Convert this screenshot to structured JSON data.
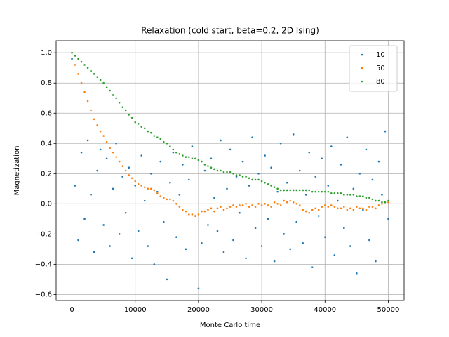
{
  "chart_data": {
    "type": "scatter",
    "title": "Relaxation (cold start, beta=0.2, 2D Ising)",
    "xlabel": "Monte Carlo time",
    "ylabel": "Magnetization",
    "x": [
      0,
      500,
      1000,
      1500,
      2000,
      2500,
      3000,
      3500,
      4000,
      4500,
      5000,
      5500,
      6000,
      6500,
      7000,
      7500,
      8000,
      8500,
      9000,
      9500,
      10000,
      10500,
      11000,
      11500,
      12000,
      12500,
      13000,
      13500,
      14000,
      14500,
      15000,
      15500,
      16000,
      16500,
      17000,
      17500,
      18000,
      18500,
      19000,
      19500,
      20000,
      20500,
      21000,
      21500,
      22000,
      22500,
      23000,
      23500,
      24000,
      24500,
      25000,
      25500,
      26000,
      26500,
      27000,
      27500,
      28000,
      28500,
      29000,
      29500,
      30000,
      30500,
      31000,
      31500,
      32000,
      32500,
      33000,
      33500,
      34000,
      34500,
      35000,
      35500,
      36000,
      36500,
      37000,
      37500,
      38000,
      38500,
      39000,
      39500,
      40000,
      40500,
      41000,
      41500,
      42000,
      42500,
      43000,
      43500,
      44000,
      44500,
      45000,
      45500,
      46000,
      46500,
      47000,
      47500,
      48000,
      48500,
      49000,
      49500,
      50000
    ],
    "series": [
      {
        "name": "10",
        "color": "#1f77b4",
        "values": [
          0.96,
          0.12,
          -0.24,
          0.34,
          -0.1,
          0.42,
          0.06,
          -0.32,
          0.22,
          0.36,
          -0.14,
          0.3,
          -0.28,
          0.1,
          0.4,
          -0.2,
          0.18,
          -0.06,
          0.24,
          -0.36,
          0.12,
          -0.18,
          0.32,
          0.02,
          -0.28,
          0.2,
          -0.4,
          0.08,
          0.28,
          -0.12,
          -0.5,
          0.14,
          0.34,
          -0.22,
          0.06,
          0.26,
          -0.3,
          0.16,
          0.38,
          -0.08,
          -0.56,
          -0.26,
          0.22,
          -0.14,
          0.3,
          0.04,
          -0.18,
          0.42,
          -0.32,
          0.1,
          0.36,
          -0.24,
          0.18,
          -0.06,
          0.28,
          -0.36,
          0.12,
          0.44,
          -0.16,
          0.2,
          -0.28,
          0.32,
          -0.1,
          0.24,
          -0.38,
          0.08,
          0.4,
          -0.2,
          0.14,
          -0.3,
          0.46,
          -0.12,
          0.22,
          -0.26,
          0.06,
          0.34,
          -0.42,
          0.18,
          -0.08,
          0.3,
          -0.22,
          0.12,
          0.38,
          -0.34,
          0.02,
          0.26,
          -0.16,
          0.44,
          -0.28,
          0.1,
          -0.46,
          0.2,
          -0.04,
          0.36,
          -0.24,
          0.16,
          -0.38,
          0.28,
          0.06,
          0.48,
          -0.1
        ]
      },
      {
        "name": "50",
        "color": "#ff7f0e",
        "values": [
          1.0,
          0.92,
          0.86,
          0.8,
          0.74,
          0.68,
          0.62,
          0.56,
          0.52,
          0.48,
          0.45,
          0.41,
          0.37,
          0.34,
          0.31,
          0.28,
          0.25,
          0.22,
          0.19,
          0.17,
          0.15,
          0.13,
          0.12,
          0.11,
          0.1,
          0.1,
          0.09,
          0.07,
          0.05,
          0.04,
          0.03,
          0.03,
          0.02,
          0.0,
          -0.02,
          -0.04,
          -0.05,
          -0.07,
          -0.07,
          -0.08,
          -0.07,
          -0.05,
          -0.05,
          -0.04,
          -0.03,
          -0.05,
          -0.03,
          -0.02,
          -0.04,
          -0.03,
          -0.02,
          -0.01,
          -0.02,
          -0.01,
          -0.01,
          0.0,
          -0.02,
          -0.01,
          -0.02,
          0.0,
          -0.01,
          0.0,
          -0.01,
          -0.02,
          0.01,
          0.0,
          -0.01,
          0.02,
          0.01,
          0.02,
          0.01,
          0.0,
          -0.01,
          -0.04,
          -0.05,
          -0.06,
          -0.04,
          -0.03,
          -0.04,
          -0.02,
          -0.01,
          -0.02,
          -0.01,
          -0.02,
          -0.03,
          -0.03,
          -0.02,
          -0.04,
          -0.03,
          -0.04,
          -0.02,
          -0.03,
          -0.03,
          -0.04,
          -0.02,
          -0.02,
          -0.03,
          -0.01,
          0.0,
          0.01,
          0.01
        ]
      },
      {
        "name": "80",
        "color": "#2ca02c",
        "values": [
          1.0,
          0.98,
          0.96,
          0.94,
          0.92,
          0.9,
          0.88,
          0.86,
          0.84,
          0.82,
          0.8,
          0.77,
          0.75,
          0.72,
          0.7,
          0.67,
          0.64,
          0.62,
          0.59,
          0.57,
          0.54,
          0.53,
          0.51,
          0.5,
          0.48,
          0.47,
          0.45,
          0.44,
          0.43,
          0.41,
          0.4,
          0.38,
          0.36,
          0.34,
          0.33,
          0.32,
          0.31,
          0.31,
          0.3,
          0.3,
          0.29,
          0.28,
          0.26,
          0.25,
          0.24,
          0.23,
          0.22,
          0.22,
          0.21,
          0.21,
          0.21,
          0.2,
          0.19,
          0.19,
          0.18,
          0.18,
          0.17,
          0.16,
          0.16,
          0.16,
          0.15,
          0.14,
          0.13,
          0.12,
          0.11,
          0.1,
          0.09,
          0.09,
          0.09,
          0.09,
          0.09,
          0.09,
          0.09,
          0.09,
          0.09,
          0.09,
          0.08,
          0.08,
          0.08,
          0.08,
          0.08,
          0.08,
          0.07,
          0.07,
          0.07,
          0.07,
          0.06,
          0.06,
          0.06,
          0.06,
          0.05,
          0.05,
          0.05,
          0.04,
          0.04,
          0.03,
          0.02,
          0.02,
          0.01,
          0.01,
          0.02
        ]
      }
    ],
    "xlim": [
      -2500,
      52500
    ],
    "ylim": [
      -0.64,
      1.08
    ],
    "xticks": [
      0,
      10000,
      20000,
      30000,
      40000,
      50000
    ],
    "yticks": [
      {
        "value": 1.0,
        "label": "1.0"
      },
      {
        "value": 0.8,
        "label": "0.8"
      },
      {
        "value": 0.6,
        "label": "0.6"
      },
      {
        "value": 0.4,
        "label": "0.4"
      },
      {
        "value": 0.2,
        "label": "0.2"
      },
      {
        "value": 0.0,
        "label": "0.0"
      },
      {
        "value": -0.2,
        "label": "−0.2"
      },
      {
        "value": -0.4,
        "label": "−0.4"
      },
      {
        "value": -0.6,
        "label": "−0.6"
      }
    ],
    "grid": true,
    "legend": "upper right"
  }
}
